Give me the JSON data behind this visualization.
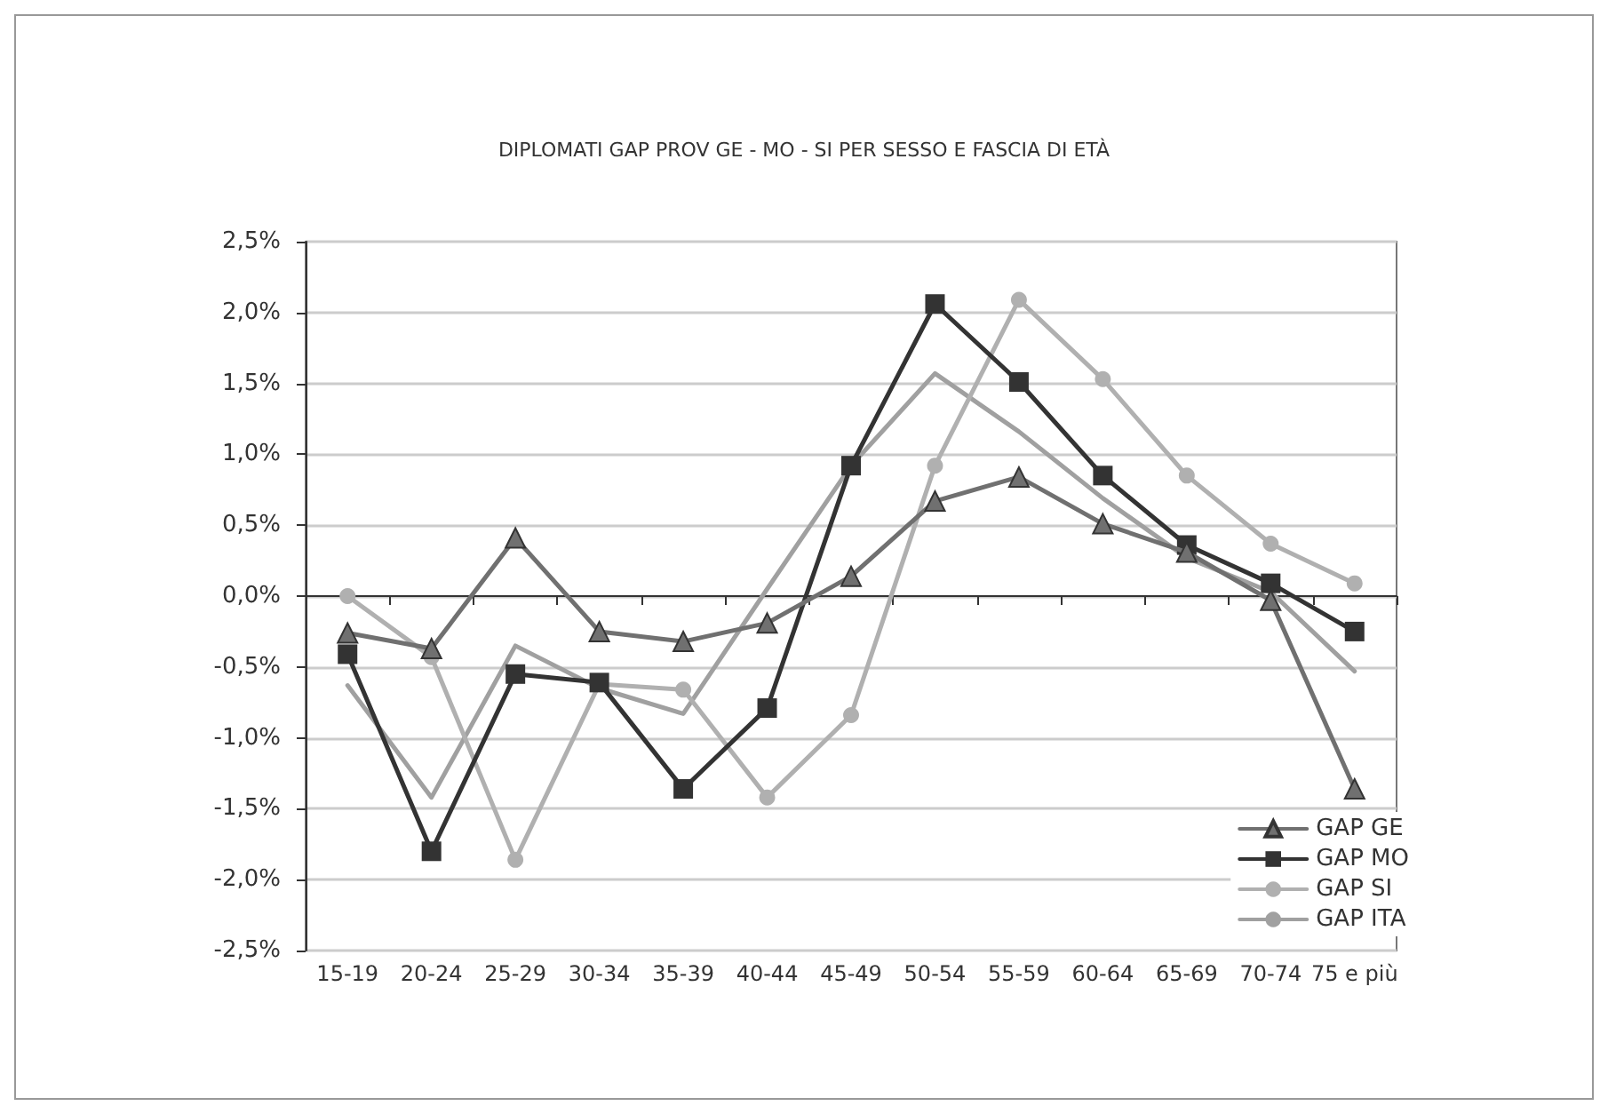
{
  "chart_data": {
    "type": "line",
    "title": "DIPLOMATI GAP PROV GE - MO - SI PER SESSO E FASCIA DI ETÀ",
    "categories": [
      "15-19",
      "20-24",
      "25-29",
      "30-34",
      "35-39",
      "40-44",
      "45-49",
      "50-54",
      "55-59",
      "60-64",
      "65-69",
      "70-74",
      "75 e più"
    ],
    "series": [
      {
        "name": "GAP GE",
        "color": "#707070",
        "marker": "triangle",
        "values": [
          -0.26,
          -0.37,
          0.41,
          -0.25,
          -0.32,
          -0.19,
          0.14,
          0.67,
          0.84,
          0.51,
          0.31,
          -0.03,
          -1.36
        ]
      },
      {
        "name": "GAP MO",
        "color": "#333333",
        "marker": "square",
        "values": [
          -0.41,
          -1.8,
          -0.55,
          -0.61,
          -1.36,
          -0.79,
          0.92,
          2.06,
          1.51,
          0.85,
          0.36,
          0.09,
          -0.25
        ]
      },
      {
        "name": "GAP SI",
        "color": "#b0b0b0",
        "marker": "circle",
        "values": [
          0.0,
          -0.43,
          -1.86,
          -0.62,
          -0.66,
          -1.42,
          -0.84,
          0.92,
          2.09,
          1.53,
          0.85,
          0.37,
          0.09
        ]
      },
      {
        "name": "GAP ITA",
        "color": "#a0a0a0",
        "marker": "none",
        "values": [
          -0.63,
          -1.42,
          -0.35,
          -0.65,
          -0.83,
          0.05,
          0.92,
          1.57,
          1.16,
          0.69,
          0.27,
          0.03,
          -0.53
        ]
      }
    ],
    "ylim": [
      -2.5,
      2.5
    ],
    "yticks": [
      {
        "value": -2.5,
        "label": "-2,5%"
      },
      {
        "value": -2.0,
        "label": "-2,0%"
      },
      {
        "value": -1.5,
        "label": "-1,5%"
      },
      {
        "value": -1.0,
        "label": "-1,0%"
      },
      {
        "value": -0.5,
        "label": "-0,5%"
      },
      {
        "value": 0,
        "label": "0,0%"
      },
      {
        "value": 0.5,
        "label": "0,5%"
      },
      {
        "value": 1.0,
        "label": "1,0%"
      },
      {
        "value": 1.5,
        "label": "1,5%"
      },
      {
        "value": 2.0,
        "label": "2,0%"
      },
      {
        "value": 2.5,
        "label": "2,5%"
      }
    ],
    "grid": "y",
    "legend": "bottom right",
    "line_style": "solid"
  }
}
